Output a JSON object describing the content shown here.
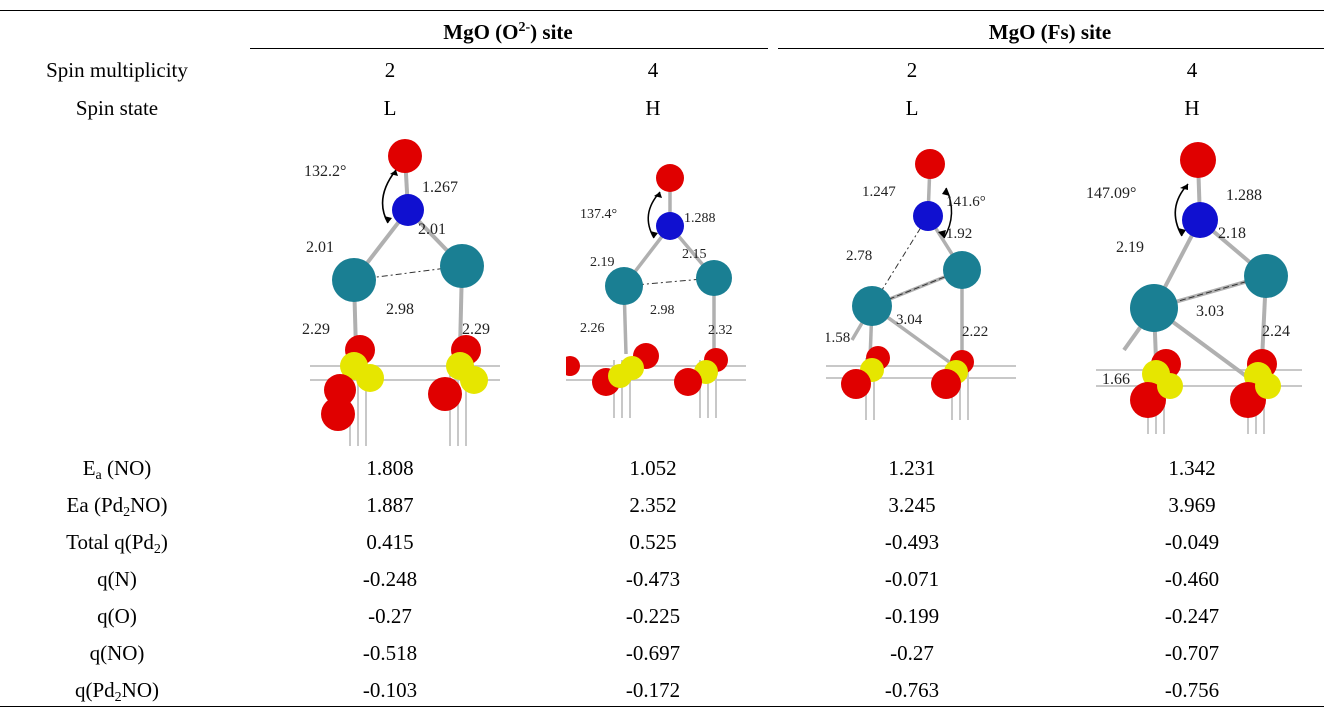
{
  "groups": {
    "o2_site": {
      "pre": "MgO (O",
      "sup": "2-",
      "post": ") site"
    },
    "fs_site": "MgO (Fs) site"
  },
  "rows": {
    "spin_multiplicity": {
      "label": "Spin multiplicity",
      "values": [
        "2",
        "4",
        "2",
        "4"
      ]
    },
    "spin_state": {
      "label": "Spin state",
      "values": [
        "L",
        "H",
        "L",
        "H"
      ]
    },
    "ea_no": {
      "label_main": "E",
      "label_sub": "a",
      "label_rest": " (NO)",
      "values": [
        "1.808",
        "1.052",
        "1.231",
        "1.342"
      ]
    },
    "ea_pd2no": {
      "label_pre": "Ea (Pd",
      "label_sub": "2",
      "label_post": "NO)",
      "values": [
        "1.887",
        "2.352",
        "3.245",
        "3.969"
      ]
    },
    "total_q_pd2": {
      "label_pre": "Total q(Pd",
      "label_sub": "2",
      "label_post": ")",
      "values": [
        "0.415",
        "0.525",
        "-0.493",
        "-0.049"
      ]
    },
    "q_n": {
      "label": "q(N)",
      "values": [
        "-0.248",
        "-0.473",
        "-0.071",
        "-0.460"
      ]
    },
    "q_o": {
      "label": "q(O)",
      "values": [
        "-0.27",
        "-0.225",
        "-0.199",
        "-0.247"
      ]
    },
    "q_no": {
      "label": "q(NO)",
      "values": [
        "-0.518",
        "-0.697",
        "-0.27",
        "-0.707"
      ]
    },
    "q_pd2no": {
      "label_pre": "q(Pd",
      "label_sub": "2",
      "label_post": "NO)",
      "values": [
        "-0.103",
        "-0.172",
        "-0.763",
        "-0.756"
      ]
    }
  },
  "structures": [
    {
      "angle": "132.2°",
      "no_bond": "1.267",
      "pd_n_left": "2.01",
      "pd_n_right": "2.01",
      "pd_pd": "2.98",
      "pd_surf_left": "2.29",
      "pd_surf_right": "2.29"
    },
    {
      "angle": "137.4°",
      "no_bond": "1.288",
      "pd_n_left": "2.19",
      "pd_n_right": "2.15",
      "pd_pd": "2.98",
      "pd_surf_left": "2.26",
      "pd_surf_right": "2.32"
    },
    {
      "angle": "141.6°",
      "no_bond": "1.247",
      "pd_n_left": "2.78",
      "pd_n_right": "1.92",
      "pd_pd": "3.04",
      "pd_surf_left": "1.58",
      "pd_surf_right": "2.22"
    },
    {
      "angle": "147.09°",
      "no_bond": "1.288",
      "pd_n_left": "2.19",
      "pd_n_right": "2.18",
      "pd_pd": "3.03",
      "pd_surf_left": "1.66",
      "pd_surf_right": "2.24"
    }
  ],
  "colors": {
    "oxygen": "#e00000",
    "nitrogen": "#1010d0",
    "palladium": "#1a7f93",
    "magnesium": "#e6e600"
  }
}
